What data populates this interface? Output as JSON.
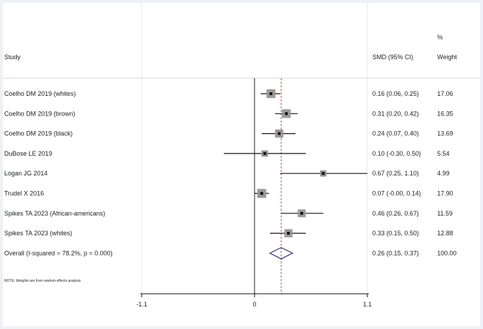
{
  "headers": {
    "study": "Study",
    "smd": "SMD (95% CI)",
    "weight_pct": "%",
    "weight": "Weight"
  },
  "note": "NOTE: Weights are from random effects analysis",
  "chart_data": {
    "type": "forest",
    "x_ticks": [
      {
        "value": -1.1,
        "label": "-1.1"
      },
      {
        "value": 0,
        "label": "0"
      },
      {
        "value": 1.1,
        "label": "1.1"
      }
    ],
    "xlim": [
      -1.1,
      1.1
    ],
    "null_line": 0,
    "overall_line": 0.26,
    "studies": [
      {
        "label": "Coelho DM 2019 (whites)",
        "smd": 0.16,
        "lo": 0.06,
        "hi": 0.25,
        "ci_text": "0.16 (0.06, 0.25)",
        "weight": "17.06"
      },
      {
        "label": "Coelho DM 2019 (brown)",
        "smd": 0.31,
        "lo": 0.2,
        "hi": 0.42,
        "ci_text": "0.31 (0.20, 0.42)",
        "weight": "16.35"
      },
      {
        "label": "Coelho DM 2019 (black)",
        "smd": 0.24,
        "lo": 0.07,
        "hi": 0.4,
        "ci_text": "0.24 (0.07, 0.40)",
        "weight": "13.69"
      },
      {
        "label": "DuBose LE 2019",
        "smd": 0.1,
        "lo": -0.3,
        "hi": 0.5,
        "ci_text": "0.10 (-0.30, 0.50)",
        "weight": "5.54"
      },
      {
        "label": "Logan JG 2014",
        "smd": 0.67,
        "lo": 0.25,
        "hi": 1.1,
        "ci_text": "0.67 (0.25, 1.10)",
        "weight": "4.99"
      },
      {
        "label": "Trudel X 2016",
        "smd": 0.07,
        "lo": -0.0,
        "hi": 0.14,
        "ci_text": "0.07 (-0.00, 0.14)",
        "weight": "17.90"
      },
      {
        "label": "Spikes TA 2023 (African-americans)",
        "smd": 0.46,
        "lo": 0.26,
        "hi": 0.67,
        "ci_text": "0.46 (0.26, 0.67)",
        "weight": "11.59"
      },
      {
        "label": "Spikes TA 2023 (whites)",
        "smd": 0.33,
        "lo": 0.15,
        "hi": 0.5,
        "ci_text": "0.33 (0.15, 0.50)",
        "weight": "12.88"
      }
    ],
    "overall": {
      "label": "Overall  (I-squared = 78.2%, p = 0.000)",
      "smd": 0.26,
      "lo": 0.15,
      "hi": 0.37,
      "ci_text": "0.26 (0.15, 0.37)",
      "weight": "100.00"
    }
  }
}
